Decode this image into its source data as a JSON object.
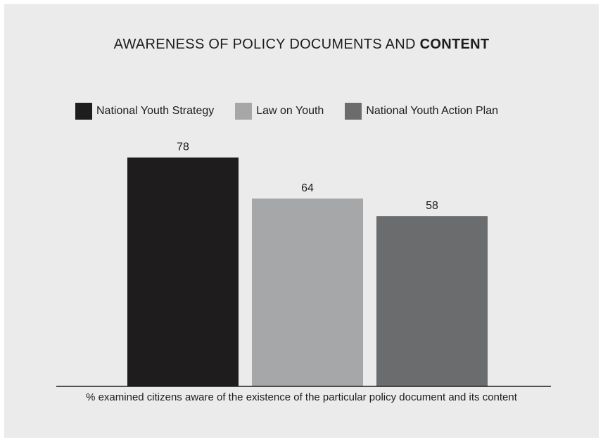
{
  "title": {
    "regular": "AWARENESS OF POLICY DOCUMENTS AND ",
    "bold": "CONTENT"
  },
  "chart_data": {
    "type": "bar",
    "title": "AWARENESS OF POLICY DOCUMENTS AND CONTENT",
    "categories": [
      "National Youth Strategy",
      "Law on Youth",
      "National Youth Action Plan"
    ],
    "values": [
      78,
      64,
      58
    ],
    "colors": [
      "#1e1c1d",
      "#a6a7a9",
      "#6b6c6e"
    ],
    "xlabel": "% examined citizens aware of the existence of the particular policy document and its content",
    "ylabel": "",
    "ylim": [
      0,
      100
    ],
    "grid": false,
    "legend": "top",
    "data_labels": [
      "78",
      "64",
      "58"
    ]
  },
  "background_color": "#ebebeb"
}
